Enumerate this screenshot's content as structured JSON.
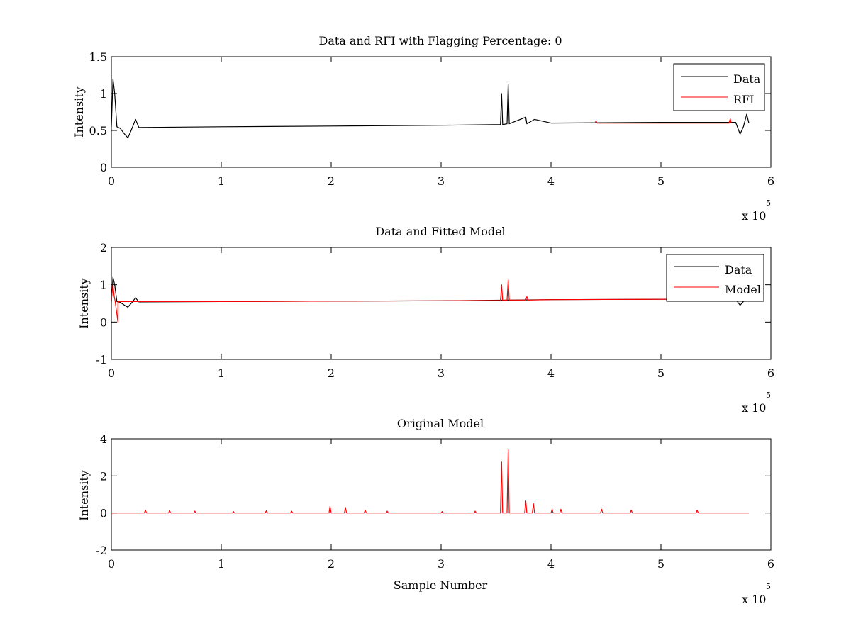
{
  "figure": {
    "background": "#ffffff",
    "multiplier_base": "x 10",
    "multiplier_exponent": "5"
  },
  "colors": {
    "data": "#000000",
    "model": "#ff0000",
    "axes": "#000000"
  },
  "chart_data": [
    {
      "type": "line",
      "title": "Data and RFI with Flagging Percentage: 0",
      "xlabel": "",
      "ylabel": "Intensity",
      "xlim": [
        0,
        600000
      ],
      "ylim": [
        0,
        1.5
      ],
      "xticks": [
        0,
        1,
        2,
        3,
        4,
        5,
        6
      ],
      "yticks": [
        0,
        0.5,
        1,
        1.5
      ],
      "x_multiplier_exponent": 5,
      "legend": {
        "placement": "top-right",
        "entries": [
          "Data",
          "RFI"
        ]
      },
      "series": [
        {
          "name": "Data",
          "color": "#000000",
          "x": [
            0,
            1500,
            3000,
            5000,
            8000,
            12000,
            15000,
            18000,
            22000,
            25000,
            100000,
            200000,
            300000,
            354000,
            355000,
            356000,
            360000,
            361000,
            362000,
            377000,
            378000,
            385000,
            400000,
            500000,
            568000,
            572000,
            575000,
            578000,
            580000
          ],
          "y": [
            0.55,
            1.2,
            1.0,
            0.55,
            0.53,
            0.45,
            0.4,
            0.5,
            0.65,
            0.54,
            0.55,
            0.56,
            0.57,
            0.58,
            1.0,
            0.58,
            0.59,
            1.13,
            0.59,
            0.68,
            0.59,
            0.65,
            0.6,
            0.61,
            0.61,
            0.45,
            0.55,
            0.72,
            0.6
          ]
        },
        {
          "name": "RFI",
          "color": "#ff0000",
          "x": [
            440000,
            441000,
            442000,
            562000,
            563000,
            564000
          ],
          "y": [
            0.6,
            0.63,
            0.6,
            0.6,
            0.66,
            0.6
          ]
        }
      ]
    },
    {
      "type": "line",
      "title": "Data and Fitted Model",
      "xlabel": "",
      "ylabel": "Intensity",
      "xlim": [
        0,
        600000
      ],
      "ylim": [
        -1,
        2
      ],
      "xticks": [
        0,
        1,
        2,
        3,
        4,
        5,
        6
      ],
      "yticks": [
        -1,
        0,
        1,
        2
      ],
      "x_multiplier_exponent": 5,
      "legend": {
        "placement": "top-right",
        "entries": [
          "Data",
          "Model"
        ]
      },
      "series": [
        {
          "name": "Data",
          "color": "#000000",
          "x": [
            0,
            1500,
            3000,
            5000,
            8000,
            12000,
            15000,
            18000,
            22000,
            25000,
            100000,
            200000,
            300000,
            400000,
            500000,
            568000,
            572000,
            575000,
            578000,
            580000
          ],
          "y": [
            0.55,
            1.2,
            1.0,
            0.55,
            0.53,
            0.45,
            0.4,
            0.5,
            0.65,
            0.54,
            0.55,
            0.56,
            0.57,
            0.6,
            0.61,
            0.61,
            0.45,
            0.55,
            0.72,
            0.6
          ]
        },
        {
          "name": "Model",
          "color": "#ff0000",
          "x": [
            0,
            1500,
            2500,
            3500,
            6000,
            6001,
            100000,
            200000,
            300000,
            354000,
            355000,
            356000,
            360000,
            361000,
            362000,
            377000,
            378000,
            379000,
            400000,
            500000,
            580000
          ],
          "y": [
            0.6,
            1.0,
            0.7,
            0.55,
            0.0,
            0.55,
            0.55,
            0.56,
            0.57,
            0.58,
            1.0,
            0.58,
            0.59,
            1.13,
            0.59,
            0.59,
            0.68,
            0.59,
            0.6,
            0.61,
            0.61
          ]
        }
      ]
    },
    {
      "type": "line",
      "title": "Original Model",
      "xlabel": "Sample Number",
      "ylabel": "Intensity",
      "xlim": [
        0,
        600000
      ],
      "ylim": [
        -2,
        4
      ],
      "xticks": [
        0,
        1,
        2,
        3,
        4,
        5,
        6
      ],
      "yticks": [
        -2,
        0,
        2,
        4
      ],
      "x_multiplier_exponent": 5,
      "series": [
        {
          "name": "",
          "color": "#ff0000",
          "x": [
            0,
            30000,
            31000,
            32000,
            52000,
            53000,
            54000,
            75000,
            76000,
            77000,
            110000,
            111000,
            112000,
            140000,
            141000,
            142000,
            163000,
            164000,
            165000,
            198000,
            199000,
            200000,
            212000,
            213000,
            214000,
            230000,
            231000,
            232000,
            250000,
            251000,
            252000,
            300000,
            301000,
            302000,
            330000,
            331000,
            332000,
            354000,
            355000,
            356000,
            360000,
            361000,
            362000,
            376000,
            377000,
            378000,
            383000,
            384000,
            385000,
            400000,
            401000,
            402000,
            408000,
            409000,
            410000,
            445000,
            446000,
            447000,
            472000,
            473000,
            474000,
            532000,
            533000,
            534000,
            580000
          ],
          "y": [
            0,
            0,
            0.15,
            0,
            0,
            0.12,
            0,
            0,
            0.1,
            0,
            0,
            0.08,
            0,
            0,
            0.12,
            0,
            0,
            0.1,
            0,
            0,
            0.35,
            0,
            0,
            0.3,
            0,
            0,
            0.15,
            0,
            0,
            0.1,
            0,
            0,
            0.08,
            0,
            0,
            0.1,
            0,
            0,
            2.75,
            0,
            0,
            3.4,
            0,
            0,
            0.65,
            0,
            0,
            0.5,
            0,
            0,
            0.2,
            0,
            0,
            0.2,
            0,
            0,
            0.2,
            0,
            0,
            0.15,
            0,
            0,
            0.15,
            0,
            0
          ]
        }
      ]
    }
  ]
}
